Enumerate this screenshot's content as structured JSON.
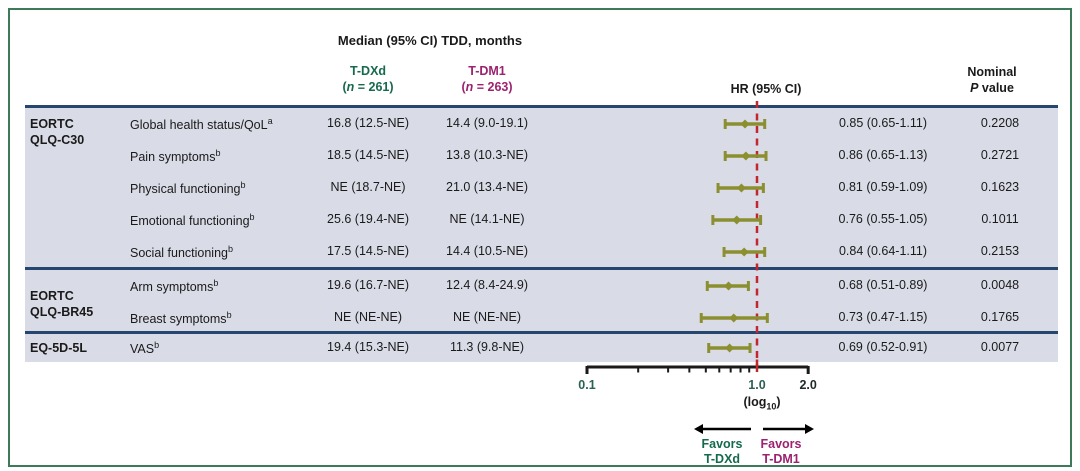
{
  "title": "Median (95% CI) TDD, months",
  "columns": {
    "tdxd": {
      "name": "T-DXd",
      "n": "261",
      "color": "#17694e"
    },
    "tdm1": {
      "name": "T-DM1",
      "n": "263",
      "color": "#9c2270"
    },
    "hr_header": "HR (95% CI)",
    "p_header_line1": "Nominal",
    "p_header_line2": "P value"
  },
  "colors": {
    "border_green": "#3c7a5a",
    "navy_line": "#26466f",
    "band_bg": "#d9dce7",
    "marker_olive": "#8b8f2f",
    "reference_red": "#c1272d",
    "tdxd_green": "#17694e",
    "tdm1_magenta": "#9c2270",
    "axis_black": "#1a1a1a"
  },
  "chart_data": {
    "type": "forest",
    "title": "Median (95% CI) TDD, months",
    "x_axis": {
      "scale": "log10",
      "min": 0.1,
      "max": 2.0,
      "label_text": "log",
      "label_sub": "10",
      "reference_line": 1.0,
      "major_ticks": [
        {
          "v": 0.1,
          "label": "0.1",
          "color": "#2b6152"
        },
        {
          "v": 1.0,
          "label": "1.0",
          "color": "#2b6152"
        },
        {
          "v": 2.0,
          "label": "2.0",
          "color": "#1f2a28"
        }
      ],
      "minor_ticks": [
        0.2,
        0.3,
        0.4,
        0.5,
        0.6,
        0.7,
        0.8,
        0.9
      ]
    },
    "groups": [
      {
        "name_lines": [
          "EORTC",
          "QLQ-C30"
        ],
        "rows": [
          {
            "label": "Global health status/QoL",
            "sup": "a",
            "tdxd": "16.8 (12.5-NE)",
            "tdm1": "14.4 (9.0-19.1)",
            "hr": 0.85,
            "ci_low": 0.65,
            "ci_high": 1.11,
            "hr_text": "0.85 (0.65-1.11)",
            "p": "0.2208"
          },
          {
            "label": "Pain symptoms",
            "sup": "b",
            "tdxd": "18.5 (14.5-NE)",
            "tdm1": "13.8 (10.3-NE)",
            "hr": 0.86,
            "ci_low": 0.65,
            "ci_high": 1.13,
            "hr_text": "0.86 (0.65-1.13)",
            "p": "0.2721"
          },
          {
            "label": "Physical functioning",
            "sup": "b",
            "tdxd": "NE (18.7-NE)",
            "tdm1": "21.0 (13.4-NE)",
            "hr": 0.81,
            "ci_low": 0.59,
            "ci_high": 1.09,
            "hr_text": "0.81 (0.59-1.09)",
            "p": "0.1623"
          },
          {
            "label": "Emotional functioning",
            "sup": "b",
            "tdxd": "25.6 (19.4-NE)",
            "tdm1": "NE (14.1-NE)",
            "hr": 0.76,
            "ci_low": 0.55,
            "ci_high": 1.05,
            "hr_text": "0.76 (0.55-1.05)",
            "p": "0.1011"
          },
          {
            "label": "Social functioning",
            "sup": "b",
            "tdxd": "17.5 (14.5-NE)",
            "tdm1": "14.4 (10.5-NE)",
            "hr": 0.84,
            "ci_low": 0.64,
            "ci_high": 1.11,
            "hr_text": "0.84 (0.64-1.11)",
            "p": "0.2153"
          }
        ]
      },
      {
        "name_lines": [
          "EORTC",
          "QLQ-BR45"
        ],
        "rows": [
          {
            "label": "Arm symptoms",
            "sup": "b",
            "tdxd": "19.6 (16.7-NE)",
            "tdm1": "12.4 (8.4-24.9)",
            "hr": 0.68,
            "ci_low": 0.51,
            "ci_high": 0.89,
            "hr_text": "0.68 (0.51-0.89)",
            "p": "0.0048"
          },
          {
            "label": "Breast symptoms",
            "sup": "b",
            "tdxd": "NE (NE-NE)",
            "tdm1": "NE (NE-NE)",
            "hr": 0.73,
            "ci_low": 0.47,
            "ci_high": 1.15,
            "hr_text": "0.73 (0.47-1.15)",
            "p": "0.1765"
          }
        ]
      },
      {
        "name_lines": [
          "EQ-5D-5L"
        ],
        "rows": [
          {
            "label": "VAS",
            "sup": "b",
            "tdxd": "19.4 (15.3-NE)",
            "tdm1": "11.3 (9.8-NE)",
            "hr": 0.69,
            "ci_low": 0.52,
            "ci_high": 0.91,
            "hr_text": "0.69 (0.52-0.91)",
            "p": "0.0077"
          }
        ]
      }
    ],
    "favors_left_line1": "Favors",
    "favors_left_line2": "T-DXd",
    "favors_right_line1": "Favors",
    "favors_right_line2": "T-DM1"
  }
}
